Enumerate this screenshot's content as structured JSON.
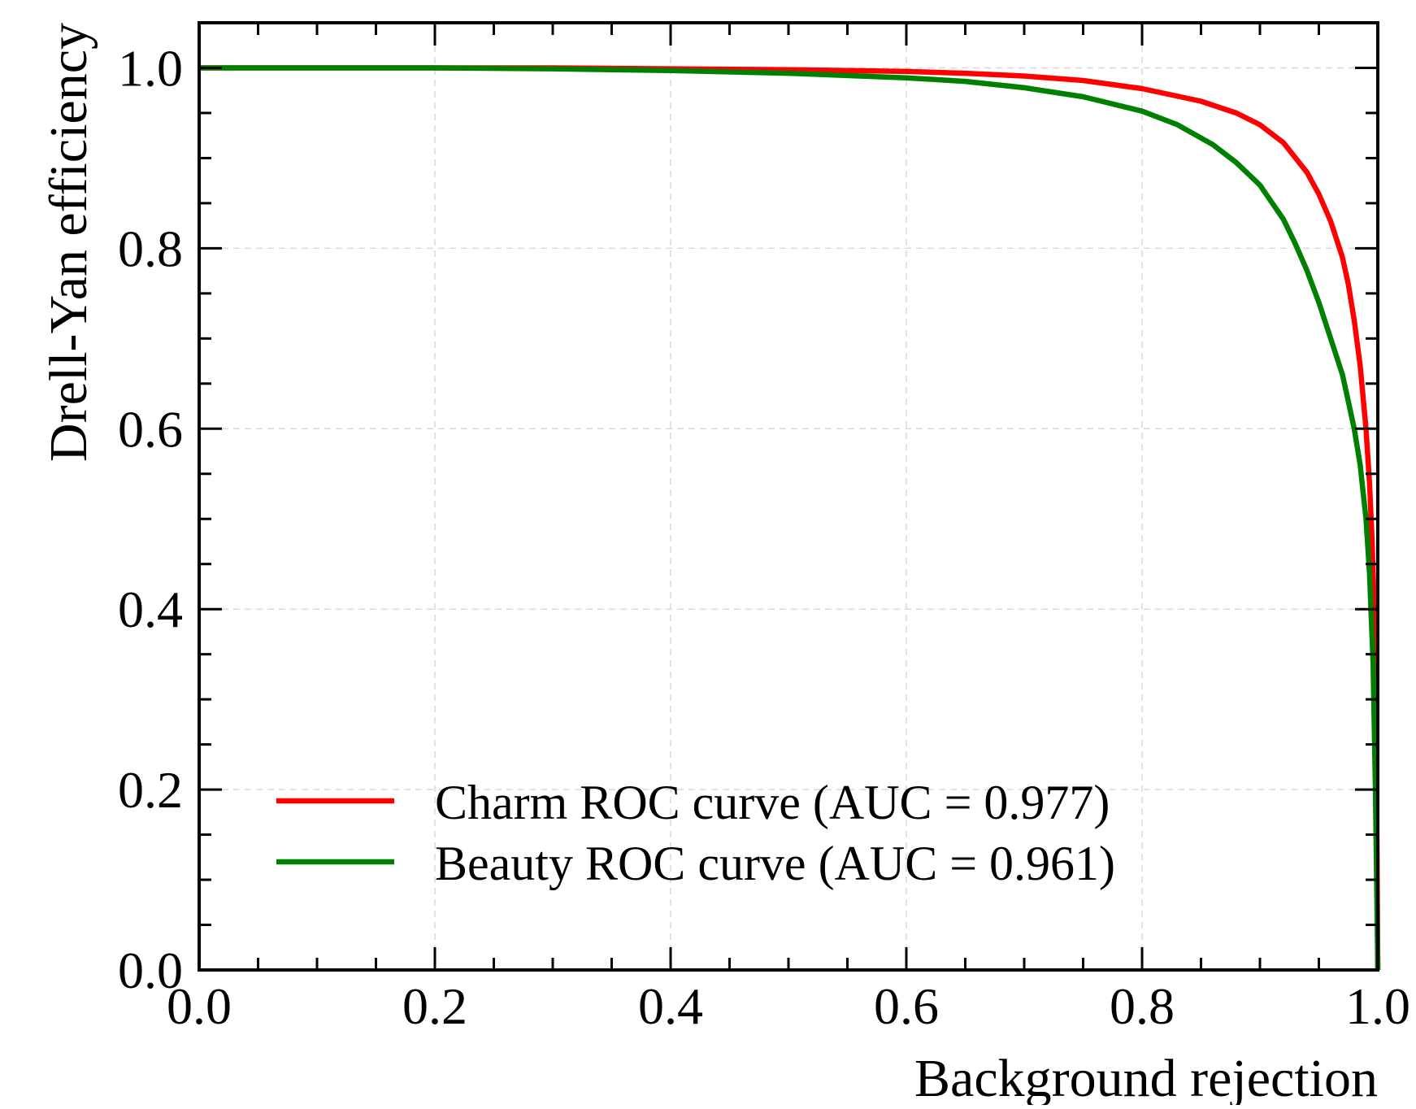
{
  "chart_data": {
    "type": "line",
    "xlabel": "Background rejection",
    "ylabel": "Drell-Yan efficiency",
    "xlim": [
      0.0,
      1.0
    ],
    "ylim": [
      0.0,
      1.05
    ],
    "xticks": [
      "0.0",
      "0.2",
      "0.4",
      "0.6",
      "0.8",
      "1.0"
    ],
    "yticks": [
      "0.0",
      "0.2",
      "0.4",
      "0.6",
      "0.8",
      "1.0"
    ],
    "grid": true,
    "legend_position": "lower-left",
    "series": [
      {
        "name": "Charm ROC curve (AUC = 0.977)",
        "color": "#ff0000",
        "x": [
          0.0,
          0.1,
          0.2,
          0.3,
          0.4,
          0.5,
          0.6,
          0.65,
          0.7,
          0.75,
          0.8,
          0.85,
          0.88,
          0.9,
          0.92,
          0.94,
          0.95,
          0.96,
          0.97,
          0.975,
          0.98,
          0.985,
          0.99,
          0.993,
          0.995,
          0.997,
          0.999,
          1.0
        ],
        "y": [
          1.0,
          1.0,
          1.0,
          1.0,
          0.999,
          0.998,
          0.996,
          0.994,
          0.991,
          0.986,
          0.977,
          0.963,
          0.95,
          0.937,
          0.917,
          0.884,
          0.86,
          0.83,
          0.79,
          0.76,
          0.72,
          0.67,
          0.6,
          0.54,
          0.48,
          0.4,
          0.2,
          0.0
        ]
      },
      {
        "name": "Beauty ROC curve (AUC = 0.961)",
        "color": "#008000",
        "x": [
          0.0,
          0.1,
          0.2,
          0.3,
          0.4,
          0.5,
          0.6,
          0.65,
          0.7,
          0.75,
          0.8,
          0.83,
          0.86,
          0.88,
          0.9,
          0.92,
          0.93,
          0.94,
          0.95,
          0.96,
          0.97,
          0.975,
          0.98,
          0.985,
          0.99,
          0.993,
          0.996,
          0.998,
          1.0
        ],
        "y": [
          1.0,
          1.0,
          1.0,
          0.999,
          0.997,
          0.994,
          0.989,
          0.985,
          0.978,
          0.968,
          0.952,
          0.937,
          0.915,
          0.895,
          0.87,
          0.832,
          0.805,
          0.775,
          0.74,
          0.7,
          0.66,
          0.63,
          0.6,
          0.56,
          0.5,
          0.44,
          0.34,
          0.2,
          0.0
        ]
      }
    ]
  }
}
